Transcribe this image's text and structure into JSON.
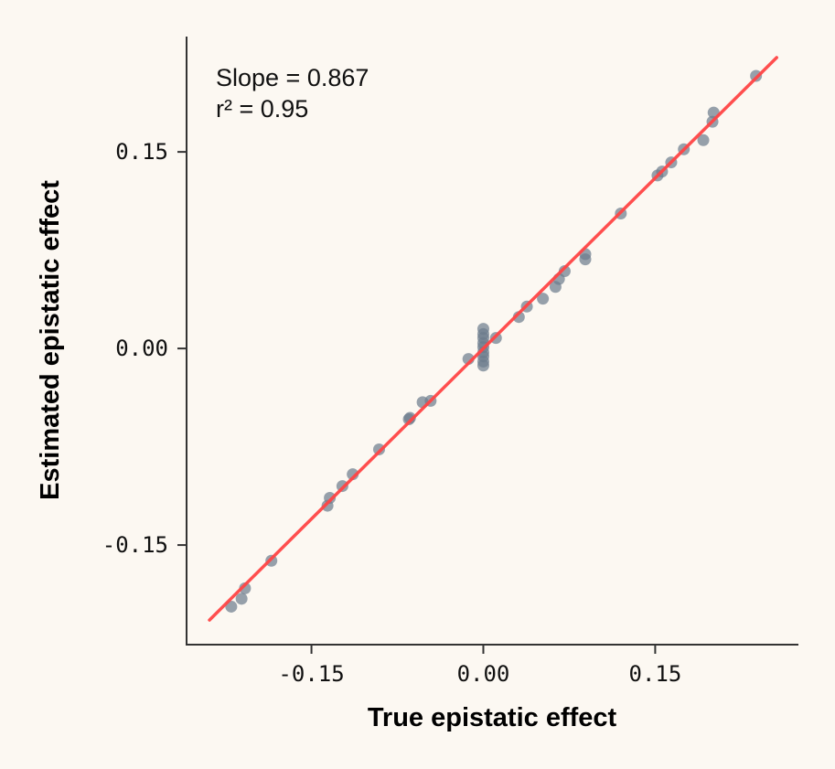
{
  "chart_data": {
    "type": "scatter",
    "xlabel": "True epistatic effect",
    "ylabel": "Estimated epistatic effect",
    "xlim": [
      -0.259,
      0.275
    ],
    "ylim": [
      -0.226,
      0.238
    ],
    "xticks": [
      {
        "value": -0.15,
        "label": "-0.15"
      },
      {
        "value": 0,
        "label": "0.00"
      },
      {
        "value": 0.15,
        "label": "0.15"
      }
    ],
    "yticks": [
      {
        "value": -0.15,
        "label": "-0.15"
      },
      {
        "value": 0,
        "label": "0.00"
      },
      {
        "value": 0.15,
        "label": "0.15"
      }
    ],
    "grid": false,
    "annotations": [
      "Slope = 0.867",
      "r² = 0.95"
    ],
    "fit_line": {
      "slope": 0.867,
      "intercept": 0.0,
      "x_range": [
        -0.239,
        0.256
      ],
      "color": "#ff4444"
    },
    "point_color": "#6b7a8b",
    "points": [
      {
        "x": -0.22,
        "y": -0.197
      },
      {
        "x": -0.211,
        "y": -0.191
      },
      {
        "x": -0.208,
        "y": -0.183
      },
      {
        "x": -0.185,
        "y": -0.162
      },
      {
        "x": -0.136,
        "y": -0.12
      },
      {
        "x": -0.134,
        "y": -0.114
      },
      {
        "x": -0.123,
        "y": -0.105
      },
      {
        "x": -0.114,
        "y": -0.096
      },
      {
        "x": -0.091,
        "y": -0.077
      },
      {
        "x": -0.065,
        "y": -0.054
      },
      {
        "x": -0.064,
        "y": -0.053
      },
      {
        "x": -0.053,
        "y": -0.041
      },
      {
        "x": -0.046,
        "y": -0.04
      },
      {
        "x": -0.013,
        "y": -0.008
      },
      {
        "x": 0,
        "y": 0.015
      },
      {
        "x": 0,
        "y": 0.011
      },
      {
        "x": 0,
        "y": 0.008
      },
      {
        "x": 0,
        "y": 0.004
      },
      {
        "x": 0,
        "y": 0.001
      },
      {
        "x": 0,
        "y": -0.003
      },
      {
        "x": 0,
        "y": -0.006
      },
      {
        "x": 0,
        "y": -0.01
      },
      {
        "x": 0,
        "y": -0.013
      },
      {
        "x": 0.011,
        "y": 0.008
      },
      {
        "x": 0.031,
        "y": 0.024
      },
      {
        "x": 0.038,
        "y": 0.032
      },
      {
        "x": 0.052,
        "y": 0.038
      },
      {
        "x": 0.063,
        "y": 0.047
      },
      {
        "x": 0.066,
        "y": 0.053
      },
      {
        "x": 0.071,
        "y": 0.059
      },
      {
        "x": 0.089,
        "y": 0.072
      },
      {
        "x": 0.089,
        "y": 0.068
      },
      {
        "x": 0.12,
        "y": 0.103
      },
      {
        "x": 0.152,
        "y": 0.132
      },
      {
        "x": 0.156,
        "y": 0.135
      },
      {
        "x": 0.164,
        "y": 0.142
      },
      {
        "x": 0.175,
        "y": 0.152
      },
      {
        "x": 0.192,
        "y": 0.159
      },
      {
        "x": 0.2,
        "y": 0.173
      },
      {
        "x": 0.201,
        "y": 0.18
      },
      {
        "x": 0.238,
        "y": 0.208
      }
    ]
  }
}
